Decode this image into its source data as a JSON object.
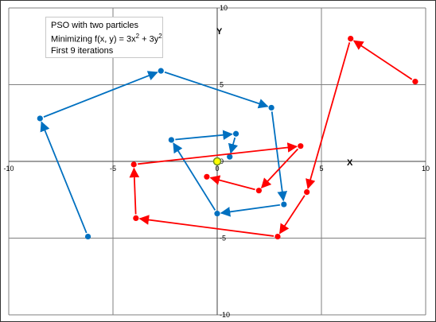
{
  "chart_data": {
    "type": "scatter",
    "annotation": {
      "line1": "PSO with two particles",
      "line2_prefix": "Minimizing f(x, y) = 3x",
      "line2_mid": " + 3y",
      "superscript": "2",
      "line3": "First 9 iterations"
    },
    "xlabel": "X",
    "ylabel": "Y",
    "xlim": [
      -10,
      10
    ],
    "ylim": [
      -10,
      10
    ],
    "x_ticks": [
      -10,
      -5,
      0,
      5,
      10
    ],
    "y_ticks": [
      -10,
      -5,
      0,
      5,
      10
    ],
    "x_tick_labels": [
      "-10",
      "-5",
      "0",
      "5",
      "10"
    ],
    "y_tick_labels": [
      "-10",
      "-5",
      "0",
      "5",
      "10"
    ],
    "grid": true,
    "series": [
      {
        "color": "#0070C0",
        "points": [
          {
            "x": -6.2,
            "y": -4.9
          },
          {
            "x": -8.5,
            "y": 2.8
          },
          {
            "x": -2.7,
            "y": 5.9
          },
          {
            "x": 2.6,
            "y": 3.5
          },
          {
            "x": 3.2,
            "y": -2.8
          },
          {
            "x": 0.0,
            "y": -3.4
          },
          {
            "x": -2.2,
            "y": 1.4
          },
          {
            "x": 0.9,
            "y": 1.8
          },
          {
            "x": 0.6,
            "y": 0.3
          }
        ]
      },
      {
        "color": "#FF0000",
        "points": [
          {
            "x": 9.5,
            "y": 5.2
          },
          {
            "x": 6.4,
            "y": 8.0
          },
          {
            "x": 4.3,
            "y": -2.0
          },
          {
            "x": 2.9,
            "y": -4.9
          },
          {
            "x": -3.9,
            "y": -3.7
          },
          {
            "x": -4.0,
            "y": -0.2
          },
          {
            "x": 4.0,
            "y": 1.0
          },
          {
            "x": 2.0,
            "y": -1.9
          },
          {
            "x": -0.5,
            "y": -1.0
          }
        ]
      }
    ],
    "optimum": {
      "x": 0,
      "y": 0,
      "fill": "#FFFF00",
      "stroke": "#6B8E23"
    }
  }
}
